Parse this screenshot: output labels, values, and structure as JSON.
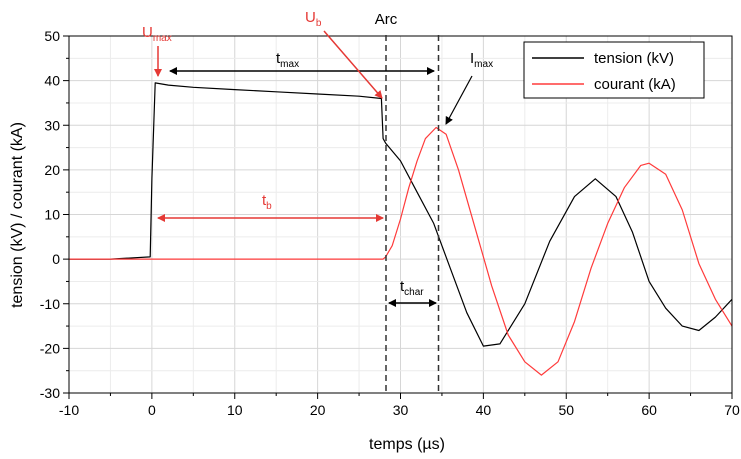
{
  "chart_data": {
    "type": "line",
    "title": "",
    "xlabel": "temps (µs)",
    "ylabel": "tension (kV) / courant (kA)",
    "xlim": [
      -10,
      70
    ],
    "ylim": [
      -30,
      50
    ],
    "xticks": [
      -10,
      0,
      10,
      20,
      30,
      40,
      50,
      60,
      70
    ],
    "yticks": [
      -30,
      -20,
      -10,
      0,
      10,
      20,
      30,
      40,
      50
    ],
    "grid": true,
    "legend_position": "top-right",
    "series": [
      {
        "name": "tension (kV)",
        "color": "#000000",
        "x": [
          -10,
          -5,
          -0.2,
          0,
          0.4,
          2,
          5,
          10,
          15,
          20,
          25,
          27.7,
          27.9,
          28.2,
          30,
          32,
          34,
          36,
          38,
          40,
          42,
          45,
          48,
          51,
          53.5,
          56,
          58,
          60,
          62,
          64,
          66,
          68,
          70
        ],
        "y": [
          0,
          0,
          0.5,
          18,
          39.5,
          39,
          38.5,
          38,
          37.5,
          37,
          36.5,
          36,
          27,
          26,
          22,
          15,
          8,
          -2,
          -12,
          -19.5,
          -19,
          -10,
          4,
          14,
          18,
          14,
          6,
          -5,
          -11,
          -15,
          -16,
          -13,
          -9
        ]
      },
      {
        "name": "courant (kA)",
        "color": "#ff3b3b",
        "x": [
          -10,
          0,
          10,
          20,
          27.9,
          28.2,
          29,
          30,
          31,
          32,
          33,
          34.3,
          35.5,
          37,
          39,
          41,
          43,
          45,
          47,
          49,
          51,
          53,
          55,
          57,
          59,
          60,
          62,
          64,
          66,
          68,
          70
        ],
        "y": [
          0,
          0,
          0,
          0,
          0,
          0.5,
          3,
          9,
          16,
          22,
          27,
          29.5,
          28,
          20,
          7,
          -6,
          -17,
          -23,
          -26,
          -23,
          -14,
          -2,
          8,
          16,
          21,
          21.5,
          19,
          11,
          -1,
          -9,
          -15
        ]
      }
    ],
    "annotations": {
      "u_max": {
        "main": "U",
        "sub": "max",
        "color": "#e53935"
      },
      "u_b": {
        "main": "U",
        "sub": "b",
        "color": "#e53935"
      },
      "arc": {
        "text": "Arc",
        "color": "#000000"
      },
      "i_max": {
        "main": "I",
        "sub": "max",
        "color": "#000000"
      },
      "t_max": {
        "main": "t",
        "sub": "max",
        "color": "#000000"
      },
      "t_b": {
        "main": "t",
        "sub": "b",
        "color": "#e53935"
      },
      "t_char": {
        "main": "t",
        "sub": "char",
        "color": "#000000"
      }
    }
  }
}
